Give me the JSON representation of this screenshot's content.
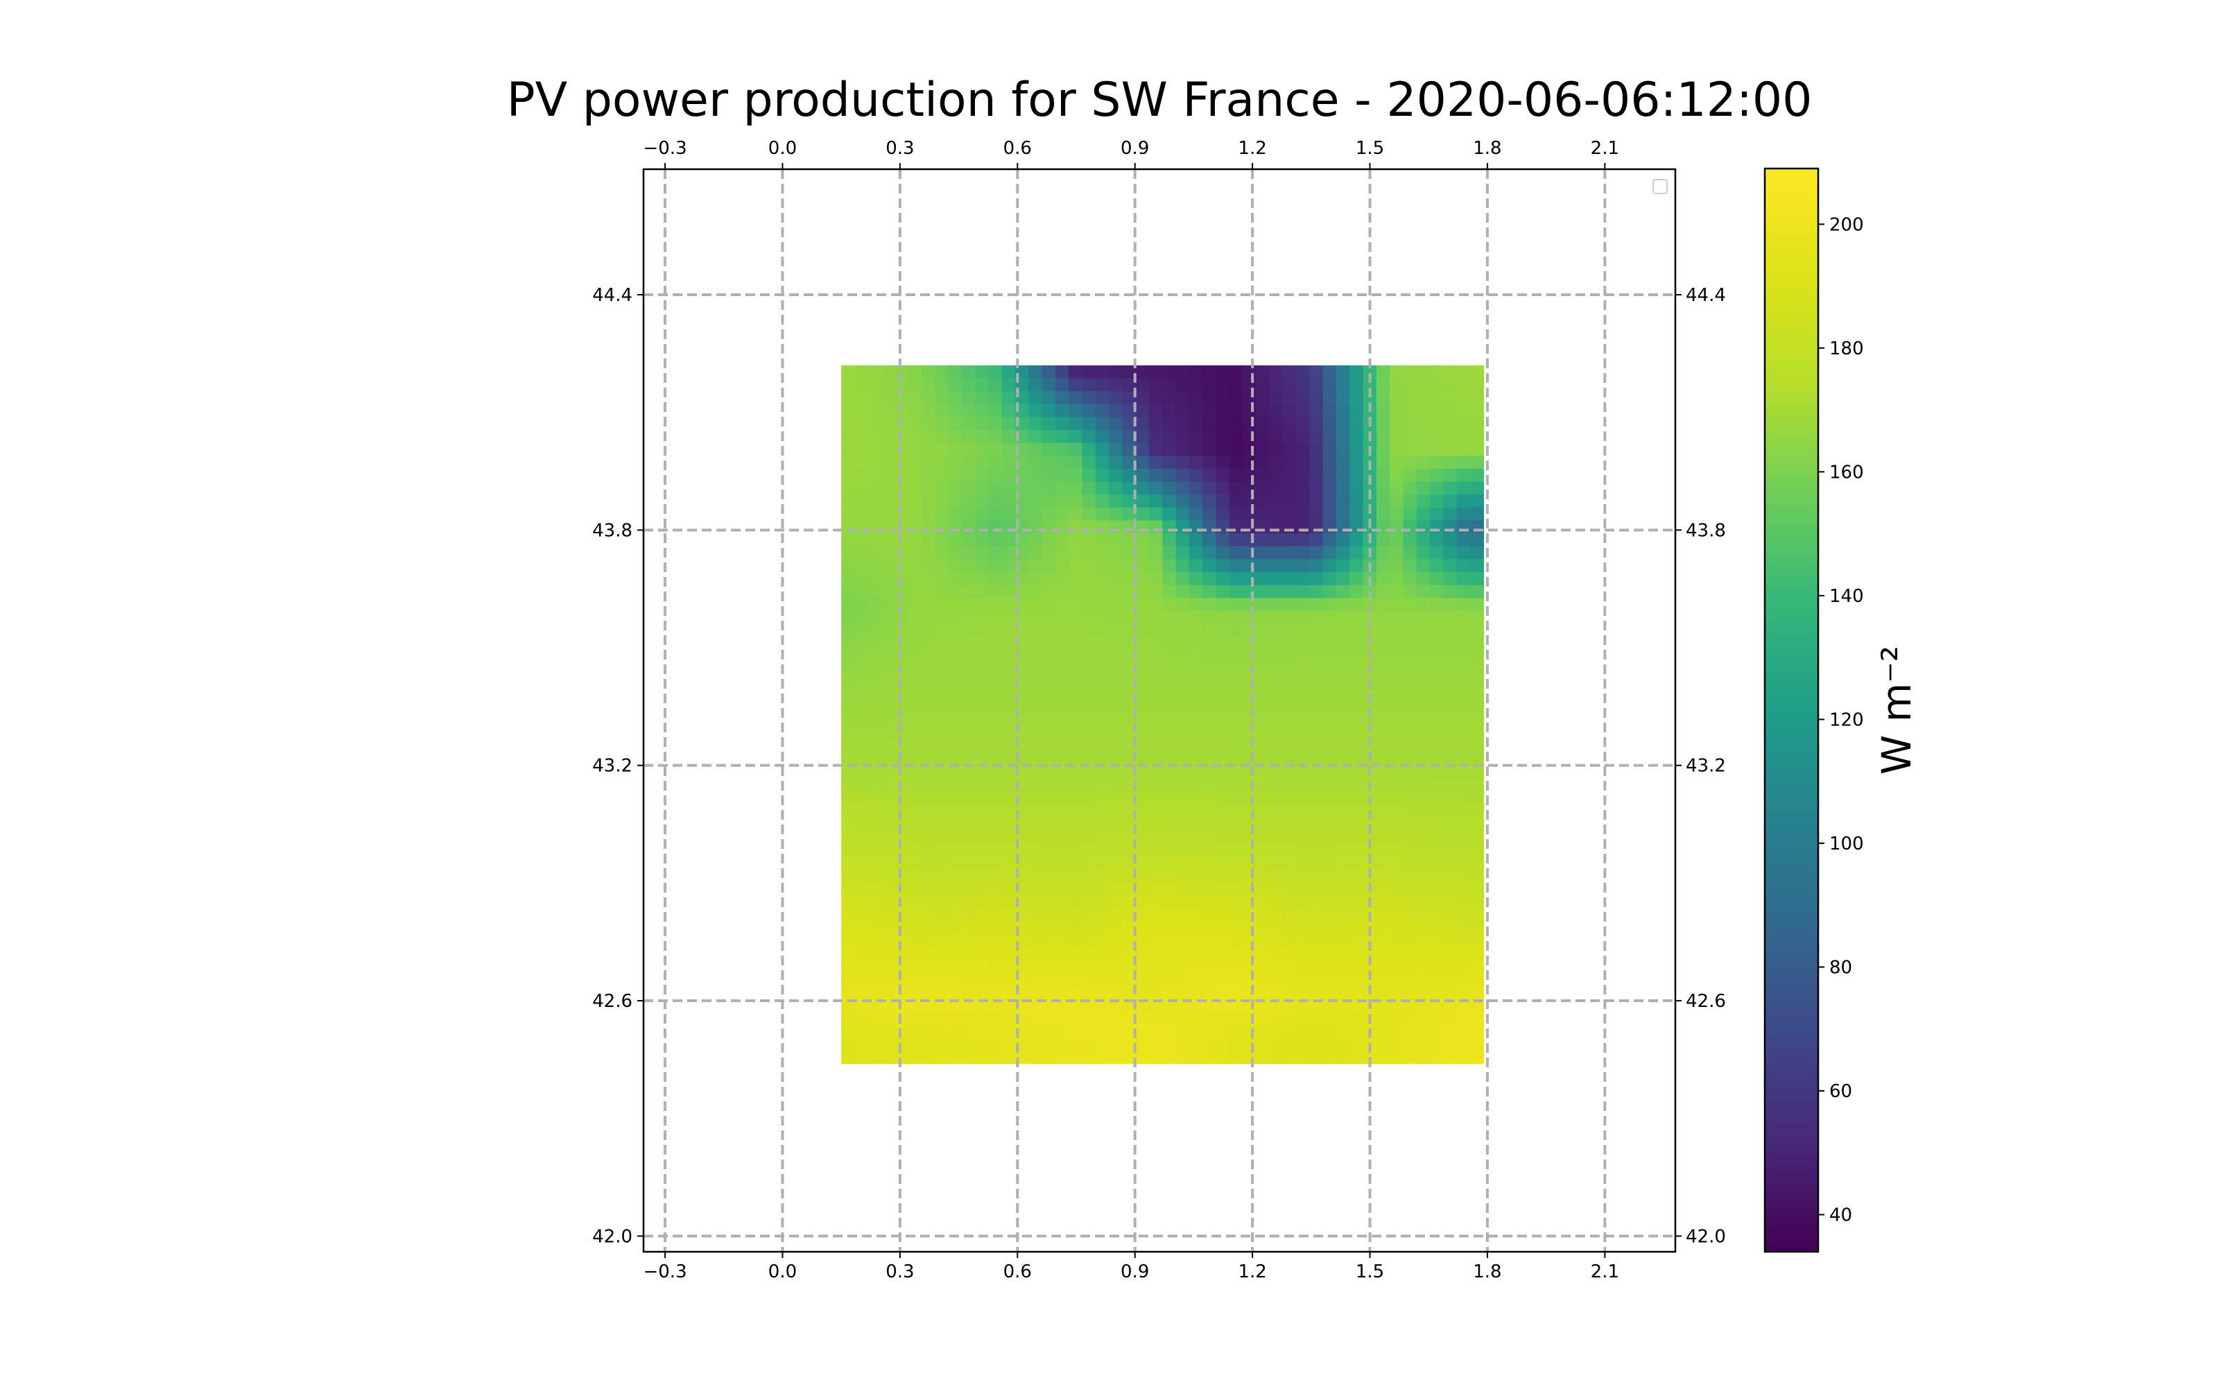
{
  "chart_data": {
    "type": "heatmap",
    "title": "PV power production for SW France - 2020-06-06:12:00",
    "xlabel": "",
    "ylabel": "",
    "x_ticks": [
      "−0.3",
      "0.0",
      "0.3",
      "0.6",
      "0.9",
      "1.2",
      "1.5",
      "1.8",
      "2.1"
    ],
    "x_tick_values": [
      -0.3,
      0.0,
      0.3,
      0.6,
      0.9,
      1.2,
      1.5,
      1.8,
      2.1
    ],
    "y_ticks": [
      "42.0",
      "42.6",
      "43.2",
      "43.8",
      "44.4"
    ],
    "y_tick_values": [
      42.0,
      42.6,
      43.2,
      43.8,
      44.4
    ],
    "xlim": [
      -0.355,
      2.28
    ],
    "ylim": [
      41.96,
      44.72
    ],
    "grid": true,
    "grid_style": "dashed",
    "colormap": "viridis",
    "colorbar": {
      "label": "W m⁻²",
      "ticks": [
        "40",
        "60",
        "80",
        "100",
        "120",
        "140",
        "160",
        "180",
        "200"
      ],
      "tick_values": [
        40,
        60,
        80,
        100,
        120,
        140,
        160,
        180,
        200
      ],
      "range": [
        34,
        209
      ]
    },
    "data_extent": {
      "lon": [
        0.15,
        1.79
      ],
      "lat": [
        42.44,
        44.22
      ]
    },
    "z_description_lon_bins": [
      0.15,
      0.35,
      0.55,
      0.75,
      0.95,
      1.15,
      1.35,
      1.55,
      1.75
    ],
    "z_grid_lat_rows": [
      {
        "lat": 44.2,
        "values": [
          168,
          162,
          140,
          50,
          45,
          40,
          60,
          165,
          168
        ]
      },
      {
        "lat": 44.0,
        "values": [
          168,
          166,
          160,
          148,
          55,
          38,
          50,
          165,
          166
        ]
      },
      {
        "lat": 43.8,
        "values": [
          166,
          166,
          150,
          165,
          160,
          52,
          48,
          160,
          90
        ]
      },
      {
        "lat": 43.6,
        "values": [
          160,
          166,
          167,
          167,
          166,
          164,
          165,
          165,
          165
        ]
      },
      {
        "lat": 43.4,
        "values": [
          167,
          168,
          168,
          168,
          168,
          168,
          168,
          168,
          168
        ]
      },
      {
        "lat": 43.2,
        "values": [
          170,
          170,
          170,
          170,
          170,
          170,
          170,
          170,
          170
        ]
      },
      {
        "lat": 43.0,
        "values": [
          178,
          176,
          176,
          176,
          177,
          176,
          176,
          176,
          175
        ]
      },
      {
        "lat": 42.8,
        "values": [
          190,
          186,
          188,
          185,
          192,
          190,
          186,
          188,
          185
        ]
      },
      {
        "lat": 42.6,
        "values": [
          196,
          200,
          198,
          200,
          196,
          200,
          196,
          195,
          198
        ]
      },
      {
        "lat": 42.5,
        "values": [
          192,
          194,
          196,
          198,
          200,
          194,
          190,
          195,
          200
        ]
      }
    ],
    "legend": {
      "placement": "top-right",
      "entries": []
    }
  }
}
